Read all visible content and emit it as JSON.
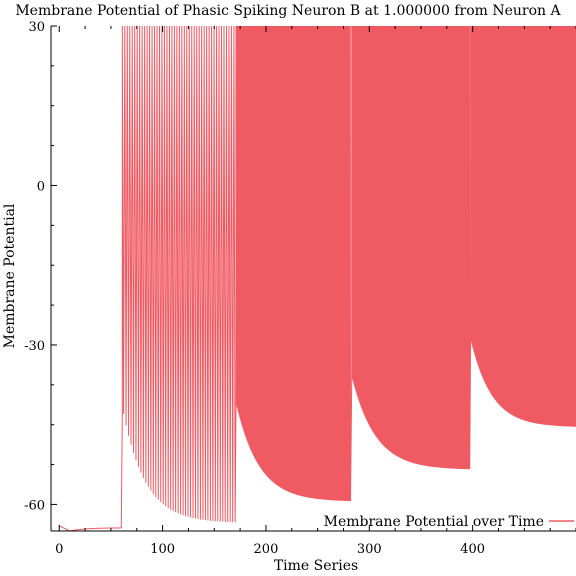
{
  "chart_data": {
    "type": "line",
    "title": "Membrane Potential of Phasic Spiking Neuron B at 1.000000 from Neuron A",
    "xlabel": "Time Series",
    "ylabel": "Membrane Potential",
    "xlim": [
      -8,
      500
    ],
    "ylim": [
      -65,
      30
    ],
    "x_ticks": [
      0,
      100,
      200,
      300,
      400
    ],
    "y_ticks": [
      -60,
      -30,
      0,
      30
    ],
    "grid": false,
    "legend_position": "bottom-right",
    "series": [
      {
        "name": "Membrane Potential over Time",
        "color": "#f05a63",
        "segments": [
          {
            "x_start": 0,
            "x_end": 60,
            "kind": "resting",
            "v_start": -64,
            "v_min": -65,
            "v_end": -64.4
          },
          {
            "x_start": 61,
            "x_end": 170,
            "kind": "spiking",
            "reset_start": -43,
            "reset_end": -63.5,
            "v_low": -64
          },
          {
            "x_start": 171,
            "x_end": 282,
            "kind": "spiking",
            "reset_start": -41,
            "reset_end": -59.5,
            "v_low": -59.5
          },
          {
            "x_start": 283,
            "x_end": 397,
            "kind": "spiking",
            "reset_start": -36,
            "reset_end": -53.5,
            "v_low": -53.5
          },
          {
            "x_start": 398,
            "x_end": 500,
            "kind": "spiking",
            "reset_start": -29,
            "reset_end": -45.5,
            "v_low": -45.5
          }
        ],
        "spike_peak": 30
      }
    ]
  }
}
